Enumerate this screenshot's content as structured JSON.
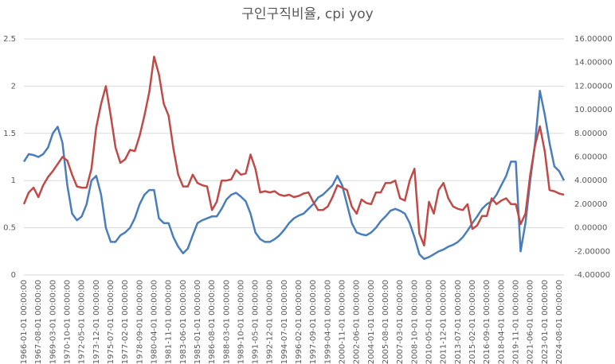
{
  "chart_data": {
    "type": "line",
    "title": "구인구직비율, cpi yoy",
    "categories": [
      "1966-01-01 00:00:00",
      null,
      null,
      "1967-08-01 00:00:00",
      null,
      null,
      "1969-03-01 00:00:00",
      null,
      null,
      "1970-10-01 00:00:00",
      null,
      null,
      "1972-05-01 00:00:00",
      null,
      null,
      "1973-12-01 00:00:00",
      null,
      null,
      "1975-07-01 00:00:00",
      null,
      null,
      "1977-02-01 00:00:00",
      null,
      null,
      "1978-09-01 00:00:00",
      null,
      null,
      "1980-04-01 00:00:00",
      null,
      null,
      "1981-11-01 00:00:00",
      null,
      null,
      "1983-06-01 00:00:00",
      null,
      null,
      "1985-01-01 00:00:00",
      null,
      null,
      "1986-08-01 00:00:00",
      null,
      null,
      "1988-03-01 00:00:00",
      null,
      null,
      "1989-10-01 00:00:00",
      null,
      null,
      "1991-05-01 00:00:00",
      null,
      null,
      "1992-12-01 00:00:00",
      null,
      null,
      "1994-07-01 00:00:00",
      null,
      null,
      "1996-02-01 00:00:00",
      null,
      null,
      "1997-09-01 00:00:00",
      null,
      null,
      "1999-04-01 00:00:00",
      null,
      null,
      "2000-11-01 00:00:00",
      null,
      null,
      "2002-06-01 00:00:00",
      null,
      null,
      "2004-01-01 00:00:00",
      null,
      null,
      "2005-08-01 00:00:00",
      null,
      null,
      "2007-03-01 00:00:00",
      null,
      null,
      "2008-10-01 00:00:00",
      null,
      null,
      "2010-05-01 00:00:00",
      null,
      null,
      "2011-12-01 00:00:00",
      null,
      null,
      "2013-07-01 00:00:00",
      null,
      null,
      "2015-02-01 00:00:00",
      null,
      null,
      "2016-09-01 00:00:00",
      null,
      null,
      "2018-04-01 00:00:00",
      null,
      null,
      "2019-11-01 00:00:00",
      null,
      null,
      "2021-06-01 00:00:00",
      null,
      null,
      "2023-01-01 00:00:00",
      null,
      null,
      "2024-08-01 00:00:00",
      null
    ],
    "series": [
      {
        "color": "#4a7ebb",
        "values": [
          1.2,
          1.28,
          1.27,
          1.25,
          1.28,
          1.35,
          1.5,
          1.57,
          1.4,
          0.95,
          0.65,
          0.58,
          0.62,
          0.75,
          1.0,
          1.05,
          0.85,
          0.5,
          0.35,
          0.35,
          0.42,
          0.45,
          0.5,
          0.6,
          0.75,
          0.85,
          0.9,
          0.9,
          0.6,
          0.55,
          0.55,
          0.4,
          0.3,
          0.23,
          0.28,
          0.42,
          0.55,
          0.58,
          0.6,
          0.62,
          0.62,
          0.7,
          0.8,
          0.85,
          0.87,
          0.83,
          0.78,
          0.65,
          0.45,
          0.38,
          0.35,
          0.35,
          0.38,
          0.42,
          0.48,
          0.55,
          0.6,
          0.63,
          0.65,
          0.7,
          0.75,
          0.82,
          0.85,
          0.9,
          0.95,
          1.05,
          0.95,
          0.75,
          0.55,
          0.45,
          0.43,
          0.42,
          0.45,
          0.5,
          0.57,
          0.62,
          0.68,
          0.7,
          0.68,
          0.65,
          0.55,
          0.4,
          0.22,
          0.17,
          0.19,
          0.22,
          0.25,
          0.27,
          0.3,
          0.32,
          0.35,
          0.4,
          0.47,
          0.55,
          0.62,
          0.7,
          0.75,
          0.78,
          0.85,
          0.95,
          1.05,
          1.2,
          1.2,
          0.25,
          0.55,
          1.0,
          1.4,
          1.95,
          1.7,
          1.4,
          1.15,
          1.1,
          1.0
        ]
      },
      {
        "color": "#be4b48",
        "axis": "y2",
        "values": [
          2.0,
          3.0,
          3.4,
          2.6,
          3.6,
          4.3,
          4.8,
          5.4,
          6.0,
          5.7,
          4.5,
          3.5,
          3.4,
          3.4,
          5.0,
          8.5,
          10.5,
          12.0,
          9.5,
          6.8,
          5.5,
          5.8,
          6.6,
          6.5,
          7.8,
          9.5,
          11.5,
          14.5,
          13.0,
          10.5,
          9.5,
          6.7,
          4.5,
          3.5,
          3.5,
          4.5,
          3.8,
          3.6,
          3.5,
          1.5,
          2.2,
          4.0,
          4.0,
          4.1,
          4.9,
          4.5,
          4.6,
          6.2,
          5.0,
          3.0,
          3.1,
          3.0,
          3.1,
          2.8,
          2.7,
          2.8,
          2.6,
          2.7,
          2.9,
          3.0,
          2.2,
          1.5,
          1.5,
          1.8,
          2.6,
          3.6,
          3.4,
          3.2,
          1.8,
          1.2,
          2.4,
          2.1,
          2.0,
          3.0,
          3.0,
          3.8,
          3.8,
          4.0,
          2.5,
          2.3,
          4.0,
          5.0,
          -0.5,
          -1.5,
          2.2,
          1.2,
          3.2,
          3.8,
          2.5,
          1.8,
          1.6,
          1.5,
          2.0,
          -0.1,
          0.2,
          1.0,
          1.0,
          2.5,
          2.0,
          2.3,
          2.5,
          2.0,
          2.0,
          0.3,
          1.2,
          4.5,
          7.0,
          8.6,
          6.5,
          3.2,
          3.1,
          2.9,
          2.8
        ]
      }
    ],
    "ylim": [
      0,
      2.5
    ],
    "yticks": [
      0,
      0.5,
      1,
      1.5,
      2,
      2.5
    ],
    "y2lim": [
      -4,
      16
    ],
    "y2ticks": [
      {
        "value": -4,
        "label": "-4.00000"
      },
      {
        "value": -2,
        "label": "-2.00000"
      },
      {
        "value": 0,
        "label": "0.00000"
      },
      {
        "value": 2,
        "label": "2.00000"
      },
      {
        "value": 4,
        "label": "4.00000"
      },
      {
        "value": 6,
        "label": "6.00000"
      },
      {
        "value": 8,
        "label": "8.00000"
      },
      {
        "value": 10,
        "label": "10.00000"
      },
      {
        "value": 12,
        "label": "12.00000"
      },
      {
        "value": 14,
        "label": "14.00000"
      },
      {
        "value": 16,
        "label": "16.00000"
      }
    ],
    "grid": true
  }
}
